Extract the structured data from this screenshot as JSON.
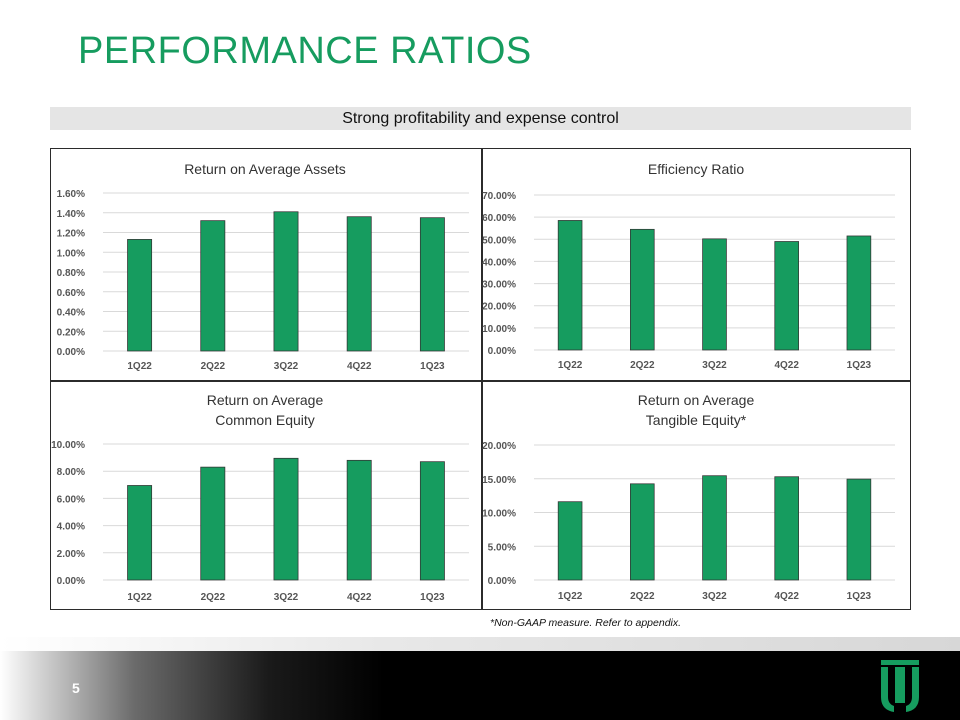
{
  "page": {
    "title": "PERFORMANCE RATIOS",
    "banner": "Strong profitability and expense control",
    "footnote": "*Non-GAAP measure.  Refer to appendix.",
    "page_number": "5",
    "accent_color": "#169C5F",
    "bar_color": "#169C5F"
  },
  "chart_data": [
    {
      "type": "bar",
      "title": "Return on Average Assets",
      "categories": [
        "1Q22",
        "2Q22",
        "3Q22",
        "4Q22",
        "1Q23"
      ],
      "values": [
        1.13,
        1.32,
        1.41,
        1.36,
        1.35
      ],
      "ylim": [
        0,
        1.6
      ],
      "yticks": [
        0,
        0.2,
        0.4,
        0.6,
        0.8,
        1.0,
        1.2,
        1.4,
        1.6
      ],
      "ytick_labels": [
        "0.00%",
        "0.20%",
        "0.40%",
        "0.60%",
        "0.80%",
        "1.00%",
        "1.20%",
        "1.40%",
        "1.60%"
      ],
      "xlabel": "",
      "ylabel": "",
      "grid": true
    },
    {
      "type": "bar",
      "title": "Efficiency Ratio",
      "categories": [
        "1Q22",
        "2Q22",
        "3Q22",
        "4Q22",
        "1Q23"
      ],
      "values": [
        58.5,
        54.5,
        50.2,
        49.0,
        51.5
      ],
      "ylim": [
        0,
        70
      ],
      "yticks": [
        0,
        10,
        20,
        30,
        40,
        50,
        60,
        70
      ],
      "ytick_labels": [
        "0.00%",
        "10.00%",
        "20.00%",
        "30.00%",
        "40.00%",
        "50.00%",
        "60.00%",
        "70.00%"
      ],
      "xlabel": "",
      "ylabel": "",
      "grid": true
    },
    {
      "type": "bar",
      "title": "Return on Average\nCommon Equity",
      "categories": [
        "1Q22",
        "2Q22",
        "3Q22",
        "4Q22",
        "1Q23"
      ],
      "values": [
        6.95,
        8.3,
        8.95,
        8.8,
        8.7
      ],
      "ylim": [
        0,
        10
      ],
      "yticks": [
        0,
        2,
        4,
        6,
        8,
        10
      ],
      "ytick_labels": [
        "0.00%",
        "2.00%",
        "4.00%",
        "6.00%",
        "8.00%",
        "10.00%"
      ],
      "xlabel": "",
      "ylabel": "",
      "grid": true
    },
    {
      "type": "bar",
      "title": "Return on Average\nTangible Equity*",
      "categories": [
        "1Q22",
        "2Q22",
        "3Q22",
        "4Q22",
        "1Q23"
      ],
      "values": [
        11.6,
        14.25,
        15.45,
        15.3,
        14.95
      ],
      "ylim": [
        0,
        20
      ],
      "yticks": [
        0,
        5,
        10,
        15,
        20
      ],
      "ytick_labels": [
        "0.00%",
        "5.00%",
        "10.00%",
        "15.00%",
        "20.00%"
      ],
      "xlabel": "",
      "ylabel": "",
      "grid": true
    }
  ]
}
